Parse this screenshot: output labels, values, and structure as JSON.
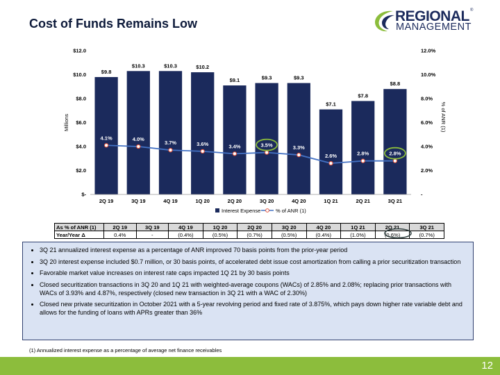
{
  "title": "Cost of Funds Remains Low",
  "logo": {
    "line1": "REGIONAL",
    "line2": "MANAGEMENT",
    "mark": "®",
    "colors": {
      "navy": "#1b2a5c",
      "green": "#8cbd3c"
    }
  },
  "chart_data": {
    "type": "bar",
    "categories": [
      "2Q 19",
      "3Q 19",
      "4Q 19",
      "1Q 20",
      "2Q 20",
      "3Q 20",
      "4Q 20",
      "1Q 21",
      "2Q 21",
      "3Q 21"
    ],
    "bar_labels": [
      "$9.8",
      "$10.3",
      "$10.3",
      "$10.2",
      "$9.1",
      "$9.3",
      "$9.3",
      "$7.1",
      "$7.8",
      "$8.8"
    ],
    "line_labels": [
      "4.1%",
      "4.0%",
      "3.7%",
      "3.6%",
      "3.4%",
      "3.5%",
      "3.3%",
      "2.6%",
      "2.8%",
      "2.8%"
    ],
    "series": [
      {
        "name": "Interest Expense",
        "type": "bar",
        "axis": "left",
        "values": [
          9.8,
          10.3,
          10.3,
          10.2,
          9.1,
          9.3,
          9.3,
          7.1,
          7.8,
          8.8
        ],
        "color": "#1b2a5c"
      },
      {
        "name": "% of ANR (1)",
        "type": "line",
        "axis": "right",
        "values": [
          4.1,
          4.0,
          3.7,
          3.6,
          3.4,
          3.5,
          3.3,
          2.6,
          2.8,
          2.8
        ],
        "color": "#4472c4",
        "marker_color": "#e6533a"
      }
    ],
    "ylabel": "Millions",
    "y2label": "% of ANR (1)",
    "ylim": [
      0,
      12
    ],
    "y2lim": [
      0,
      12
    ],
    "yticks": [
      0,
      2,
      4,
      6,
      8,
      10,
      12
    ],
    "ytick_labels": [
      "$-",
      "$2.0",
      "$4.0",
      "$6.0",
      "$8.0",
      "$10.0",
      "$12.0"
    ],
    "y2tick_labels": [
      "-",
      "2.0%",
      "4.0%",
      "6.0%",
      "8.0%",
      "10.0%",
      "12.0%"
    ],
    "highlighted_categories": [
      "3Q 20",
      "3Q 21"
    ],
    "highlight_color": "#8cbd3c",
    "legend_position": "bottom"
  },
  "table": {
    "header_label": "As % of ANR (1)",
    "headers": [
      "2Q 19",
      "3Q 19",
      "4Q 19",
      "1Q 20",
      "2Q 20",
      "3Q 20",
      "4Q 20",
      "1Q 21",
      "2Q 21",
      "3Q 21"
    ],
    "row_label": "Year/Year Δ",
    "values": [
      "0.4%",
      "-",
      "(0.4%)",
      "(0.5%)",
      "(0.7%)",
      "(0.5%)",
      "(0.4%)",
      "(1.0%)",
      "(0.6%)",
      "(0.7%)"
    ]
  },
  "bullets": [
    "3Q 21 annualized interest expense as a percentage of ANR improved 70 basis points from the prior-year period",
    "3Q 20 interest expense included $0.7 million, or 30 basis points, of accelerated debt issue cost amortization from calling a prior securitization transaction",
    "Favorable market value increases on interest rate caps impacted 1Q 21 by 30 basis points",
    "Closed securitization transactions in 3Q 20 and 1Q 21 with weighted-average coupons (WACs) of 2.85% and 2.08%; replacing prior transactions with WACs of 3.93% and 4.87%, respectively (closed new transaction in 3Q 21 with a WAC of 2.30%)",
    "Closed new private securitization in October 2021 with a 5-year revolving period and fixed rate of 3.875%, which pays down higher rate variable debt and allows for the funding of loans with APRs greater than 36%"
  ],
  "footnote": "(1) Annualized interest expense as a percentage of average net finance receivables",
  "page_number": "12"
}
